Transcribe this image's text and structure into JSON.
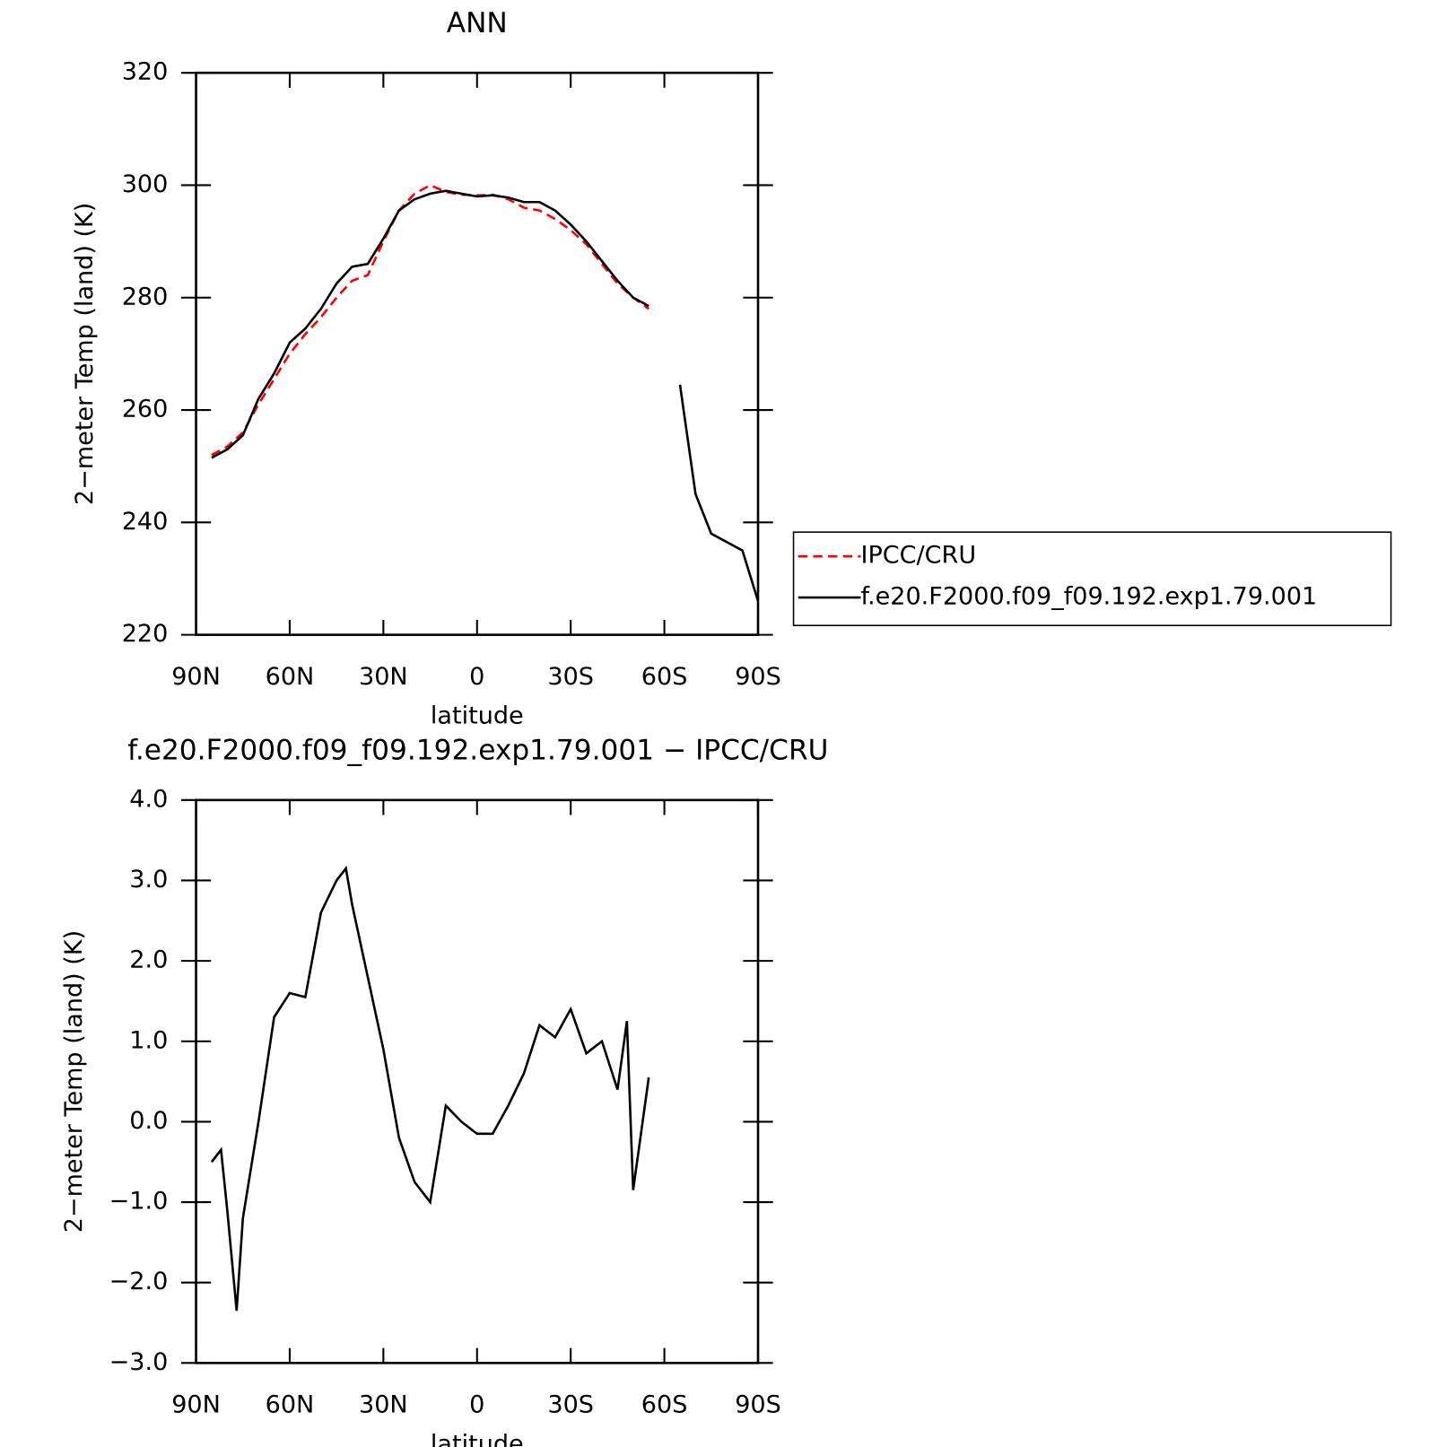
{
  "chart_data": [
    {
      "type": "line",
      "title": "ANN",
      "xlabel": "latitude",
      "ylabel": "2−meter Temp (land) (K)",
      "x": [
        85,
        80,
        75,
        70,
        65,
        60,
        55,
        50,
        45,
        40,
        35,
        30,
        25,
        20,
        15,
        10,
        5,
        0,
        -5,
        -10,
        -15,
        -20,
        -25,
        -30,
        -35,
        -40,
        -45,
        -50,
        -55,
        -60,
        -65,
        -70,
        -75,
        -80,
        -85,
        -90
      ],
      "series": [
        {
          "name": "IPCC/CRU",
          "color": "#ff0000",
          "linestyle": "dashed",
          "values": [
            252,
            253.5,
            256,
            261,
            265.5,
            270,
            273.5,
            276.5,
            280,
            283,
            284,
            290,
            295.5,
            298.5,
            300,
            298.8,
            298.3,
            298.2,
            298.3,
            297.5,
            296,
            295.5,
            294,
            292,
            289.5,
            286,
            282.5,
            280,
            278,
            null,
            null,
            null,
            null,
            null,
            null,
            null
          ]
        },
        {
          "name": "f.e20.F2000.f09_f09.192.exp1.79.001",
          "color": "#000000",
          "linestyle": "solid",
          "values": [
            251.5,
            253,
            255.5,
            262,
            266.5,
            272,
            274.5,
            278,
            282.5,
            285.5,
            286,
            290.5,
            295.5,
            297.5,
            298.5,
            299,
            298.5,
            298,
            298.2,
            297.8,
            297,
            297,
            295.5,
            293,
            290,
            286.5,
            283,
            280,
            278.5,
            null,
            264.5,
            245,
            238,
            236.5,
            235,
            226
          ]
        }
      ],
      "xlim": [
        90,
        -90
      ],
      "xticks": [
        {
          "value": 90,
          "label": "90N"
        },
        {
          "value": 60,
          "label": "60N"
        },
        {
          "value": 30,
          "label": "30N"
        },
        0,
        {
          "value": -30,
          "label": "30S"
        },
        {
          "value": -60,
          "label": "60S"
        },
        {
          "value": -90,
          "label": "90S"
        }
      ],
      "ylim": [
        220,
        320
      ],
      "yticks": [
        220,
        240,
        260,
        280,
        300,
        320
      ],
      "legend": "right"
    },
    {
      "type": "line",
      "title": "f.e20.F2000.f09_f09.192.exp1.79.001 − IPCC/CRU",
      "xlabel": "latitude",
      "ylabel": "2−meter Temp (land) (K)",
      "x": [
        85,
        82,
        80,
        77,
        75,
        70,
        65,
        60,
        55,
        50,
        45,
        42,
        40,
        35,
        30,
        25,
        20,
        15,
        10,
        5,
        0,
        -5,
        -10,
        -15,
        -20,
        -25,
        -30,
        -35,
        -40,
        -45,
        -48,
        -50,
        -55
      ],
      "series": [
        {
          "name": "f.e20.F2000.f09_f09.192.exp1.79.001 − IPCC/CRU",
          "color": "#000000",
          "linestyle": "solid",
          "values": [
            -0.5,
            -0.35,
            -1.1,
            -2.35,
            -1.2,
            0.0,
            1.3,
            1.6,
            1.55,
            2.6,
            3.0,
            3.15,
            2.7,
            1.8,
            0.9,
            -0.2,
            -0.75,
            -1.0,
            0.2,
            0.0,
            -0.15,
            -0.15,
            0.2,
            0.6,
            1.2,
            1.05,
            1.4,
            0.85,
            1.0,
            0.4,
            1.25,
            -0.85,
            0.55
          ]
        }
      ],
      "xlim": [
        90,
        -90
      ],
      "xticks": [
        {
          "value": 90,
          "label": "90N"
        },
        {
          "value": 60,
          "label": "60N"
        },
        {
          "value": 30,
          "label": "30N"
        },
        0,
        {
          "value": -30,
          "label": "30S"
        },
        {
          "value": -60,
          "label": "60S"
        },
        {
          "value": -90,
          "label": "90S"
        }
      ],
      "ylim": [
        -3,
        4
      ],
      "yticks": [
        {
          "value": -3,
          "label": "−3.0"
        },
        {
          "value": -2,
          "label": "−2.0"
        },
        {
          "value": -1,
          "label": "−1.0"
        },
        {
          "value": 0,
          "label": "0.0"
        },
        {
          "value": 1,
          "label": "1.0"
        },
        {
          "value": 2,
          "label": "2.0"
        },
        {
          "value": 3,
          "label": "3.0"
        },
        {
          "value": 4,
          "label": "4.0"
        }
      ]
    }
  ]
}
